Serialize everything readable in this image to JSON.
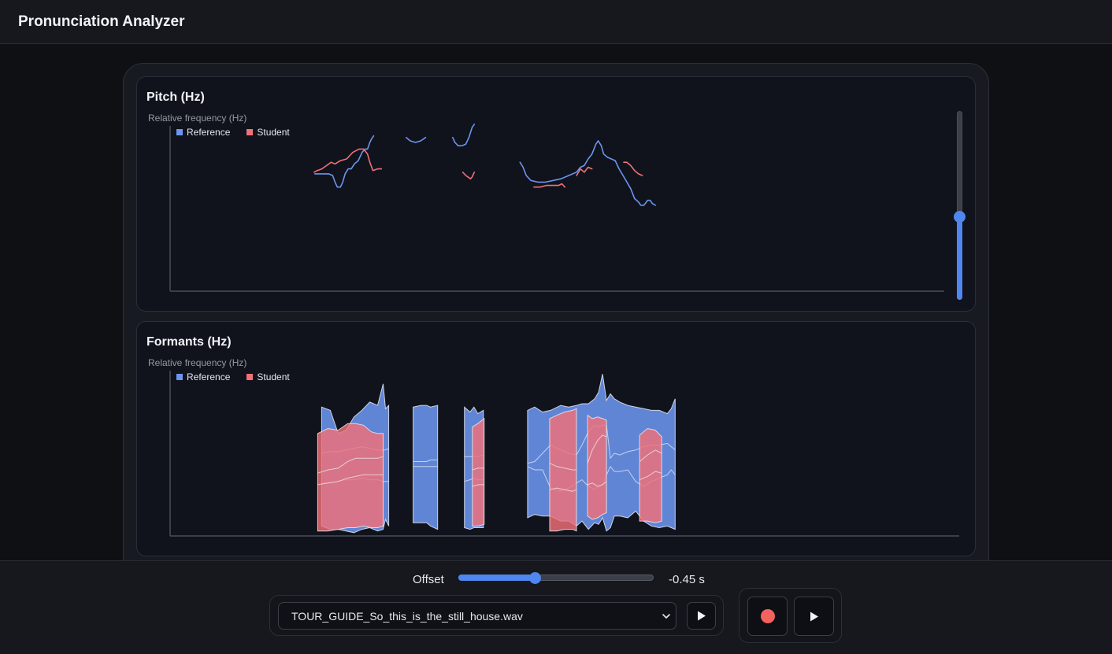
{
  "app": {
    "title": "Pronunciation Analyzer"
  },
  "colors": {
    "reference": "#6c95ef",
    "student": "#f17078",
    "accent": "#4f86f0",
    "record": "#f2625f"
  },
  "legend": {
    "reference": "Reference",
    "student": "Student"
  },
  "pitch_panel": {
    "title": "Pitch (Hz)",
    "y_axis_label": "Relative frequency (Hz)",
    "zoom_level": 0.44
  },
  "formants_panel": {
    "title": "Formants (Hz)",
    "y_axis_label": "Relative frequency (Hz)"
  },
  "offset": {
    "label": "Offset",
    "value_text": "-0.45 s",
    "fraction": 0.39
  },
  "audio_file": {
    "selected": "TOUR_GUIDE_So_this_is_the_still_house.wav"
  },
  "icons": {
    "file_play": "play-icon",
    "record": "record-icon",
    "record_play": "play-icon",
    "dropdown": "chevron-down-icon"
  },
  "chart_data": [
    {
      "type": "line",
      "title": "Pitch (Hz)",
      "ylabel": "Relative frequency (Hz)",
      "xlabel": "",
      "x_range": [
        0,
        1
      ],
      "ylim": [
        0,
        100
      ],
      "grid": false,
      "legend": "top-left",
      "series": [
        {
          "name": "Reference",
          "segments": [
            [
              [
                0.187,
                71
              ],
              [
                0.195,
                71
              ],
              [
                0.205,
                71
              ],
              [
                0.21,
                70
              ],
              [
                0.213,
                66
              ],
              [
                0.216,
                63
              ],
              [
                0.22,
                63
              ],
              [
                0.223,
                66
              ],
              [
                0.226,
                71
              ],
              [
                0.23,
                74
              ],
              [
                0.234,
                74
              ],
              [
                0.238,
                77
              ],
              [
                0.243,
                79
              ],
              [
                0.248,
                84
              ],
              [
                0.252,
                86
              ],
              [
                0.255,
                86
              ],
              [
                0.258,
                90
              ],
              [
                0.26,
                92
              ],
              [
                0.263,
                94
              ]
            ],
            [
              [
                0.305,
                93
              ],
              [
                0.31,
                91
              ],
              [
                0.317,
                90
              ],
              [
                0.324,
                91
              ],
              [
                0.33,
                93
              ]
            ],
            [
              [
                0.365,
                93
              ],
              [
                0.368,
                90
              ],
              [
                0.372,
                88
              ],
              [
                0.377,
                88
              ],
              [
                0.382,
                89
              ],
              [
                0.386,
                93
              ],
              [
                0.39,
                99
              ],
              [
                0.393,
                101
              ]
            ],
            [
              [
                0.452,
                78
              ],
              [
                0.456,
                75
              ],
              [
                0.46,
                70
              ],
              [
                0.466,
                67
              ],
              [
                0.475,
                66
              ],
              [
                0.485,
                66
              ],
              [
                0.495,
                67
              ],
              [
                0.505,
                68
              ],
              [
                0.515,
                70
              ],
              [
                0.525,
                72
              ],
              [
                0.53,
                75
              ],
              [
                0.535,
                76
              ],
              [
                0.54,
                80
              ],
              [
                0.545,
                83
              ],
              [
                0.55,
                89
              ],
              [
                0.553,
                91
              ],
              [
                0.557,
                88
              ],
              [
                0.56,
                83
              ],
              [
                0.565,
                81
              ],
              [
                0.57,
                80
              ],
              [
                0.575,
                79
              ],
              [
                0.58,
                74
              ],
              [
                0.585,
                70
              ],
              [
                0.59,
                66
              ],
              [
                0.595,
                62
              ],
              [
                0.6,
                56
              ],
              [
                0.605,
                54
              ],
              [
                0.608,
                52
              ],
              [
                0.612,
                52
              ],
              [
                0.617,
                55
              ],
              [
                0.62,
                55
              ],
              [
                0.623,
                53
              ],
              [
                0.627,
                52
              ]
            ]
          ]
        },
        {
          "name": "Student",
          "segments": [
            [
              [
                0.186,
                72
              ],
              [
                0.19,
                73
              ],
              [
                0.196,
                74
              ],
              [
                0.202,
                76
              ],
              [
                0.208,
                78
              ],
              [
                0.213,
                77
              ],
              [
                0.22,
                79
              ],
              [
                0.228,
                80
              ],
              [
                0.236,
                84
              ],
              [
                0.244,
                86
              ],
              [
                0.25,
                86
              ],
              [
                0.255,
                83
              ],
              [
                0.258,
                78
              ],
              [
                0.262,
                73
              ],
              [
                0.268,
                74
              ],
              [
                0.273,
                74
              ]
            ],
            [
              [
                0.378,
                72
              ],
              [
                0.382,
                70
              ],
              [
                0.388,
                68
              ],
              [
                0.39,
                69
              ],
              [
                0.393,
                72
              ]
            ],
            [
              [
                0.47,
                63
              ],
              [
                0.478,
                63
              ],
              [
                0.486,
                64
              ],
              [
                0.494,
                64
              ],
              [
                0.502,
                64
              ],
              [
                0.506,
                65
              ],
              [
                0.51,
                63
              ]
            ],
            [
              [
                0.525,
                70
              ],
              [
                0.53,
                74
              ],
              [
                0.535,
                72
              ],
              [
                0.54,
                75
              ],
              [
                0.545,
                74
              ]
            ],
            [
              [
                0.586,
                78
              ],
              [
                0.59,
                78
              ],
              [
                0.595,
                76
              ],
              [
                0.6,
                73
              ],
              [
                0.605,
                71
              ],
              [
                0.61,
                70
              ]
            ]
          ]
        }
      ]
    },
    {
      "type": "area",
      "title": "Formants (Hz)",
      "ylabel": "Relative frequency (Hz)",
      "xlabel": "",
      "x_range": [
        0,
        1
      ],
      "ylim": [
        0,
        100
      ],
      "grid": false,
      "legend": "top-left",
      "series": [
        {
          "name": "Reference",
          "bands": [
            {
              "x": [
                0.192,
                0.203,
                0.213,
                0.223,
                0.233,
                0.243,
                0.253,
                0.263,
                0.27,
                0.273,
                0.277
              ],
              "top": [
                78,
                76,
                62,
                64,
                72,
                76,
                81,
                79,
                92,
                77,
                79
              ],
              "bottom": [
                6,
                4,
                4,
                3,
                2,
                4,
                5,
                3,
                4,
                10,
                6
              ],
              "mid": [
                [
                  32,
                  32,
                  33,
                  34,
                  34,
                  35,
                  34,
                  34,
                  33,
                  33,
                  33
                ],
                [
                  50,
                  51,
                  51,
                  52,
                  53,
                  54,
                  53,
                  52,
                  52,
                  52,
                  53
                ]
              ]
            },
            {
              "x": [
                0.308,
                0.318,
                0.325,
                0.33,
                0.339
              ],
              "top": [
                78,
                79,
                79,
                78,
                79
              ],
              "bottom": [
                8,
                8,
                8,
                6,
                4
              ],
              "mid": [
                [
                  42,
                  42,
                  42,
                  42,
                  42
                ],
                [
                  45,
                  45,
                  45,
                  46,
                  46
                ]
              ]
            },
            {
              "x": [
                0.373,
                0.38,
                0.385,
                0.39,
                0.397
              ],
              "top": [
                78,
                75,
                78,
                74,
                76
              ],
              "bottom": [
                5,
                4,
                5,
                5,
                5
              ],
              "mid": [
                [
                  33,
                  34,
                  35,
                  34,
                  34
                ],
                [
                  48,
                  48,
                  48,
                  48,
                  49
                ]
              ]
            },
            {
              "x": [
                0.453,
                0.462,
                0.472,
                0.482,
                0.495,
                0.505,
                0.515,
                0.522,
                0.53,
                0.538,
                0.543,
                0.548,
                0.553,
                0.558,
                0.563,
                0.57,
                0.58,
                0.59,
                0.6,
                0.61,
                0.62,
                0.63,
                0.635,
                0.64
              ],
              "top": [
                76,
                78,
                75,
                76,
                79,
                78,
                79,
                80,
                80,
                83,
                87,
                98,
                82,
                86,
                83,
                81,
                79,
                78,
                77,
                76,
                76,
                74,
                77,
                83
              ],
              "bottom": [
                11,
                13,
                12,
                12,
                9,
                9,
                6,
                9,
                4,
                8,
                7,
                11,
                3,
                5,
                12,
                12,
                11,
                15,
                9,
                6,
                5,
                6,
                5,
                4
              ],
              "mid": [
                [
                  42,
                  40,
                  40,
                  29,
                  27,
                  29,
                  32,
                  34,
                  30,
                  28,
                  30,
                  31,
                  37,
                  42,
                  39,
                  39,
                  40,
                  33,
                  30,
                  33,
                  35,
                  37,
                  40,
                  37
                ],
                [
                  44,
                  45,
                  50,
                  55,
                  52,
                  50,
                  49,
                  55,
                  63,
                  67,
                  66,
                  67,
                  67,
                  47,
                  50,
                  49,
                  51,
                  52,
                  54,
                  55,
                  55,
                  56,
                  54,
                  52
                ]
              ]
            }
          ]
        },
        {
          "name": "Student",
          "bands": [
            {
              "x": [
                0.187,
                0.2,
                0.213,
                0.225,
                0.235,
                0.245,
                0.255,
                0.263,
                0.27
              ],
              "top": [
                62,
                65,
                64,
                68,
                68,
                67,
                63,
                62,
                62
              ],
              "bottom": [
                3,
                3,
                4,
                5,
                5,
                6,
                5,
                5,
                6
              ],
              "mid": [
                [
                  31,
                  32,
                  33,
                  35,
                  36,
                  37,
                  37,
                  37,
                  37
                ],
                [
                  38,
                  40,
                  41,
                  45,
                  47,
                  47,
                  47,
                  47,
                  48
                ]
              ]
            },
            {
              "x": [
                0.383,
                0.39,
                0.398
              ],
              "top": [
                66,
                68,
                71
              ],
              "bottom": [
                6,
                6,
                7
              ],
              "mid": [
                [
                  30,
                  31,
                  31
                ],
                [
                  40,
                  41,
                  41
                ]
              ]
            },
            {
              "x": [
                0.481,
                0.49,
                0.5,
                0.51,
                0.515
              ],
              "top": [
                71,
                73,
                75,
                76,
                77
              ],
              "bottom": [
                3,
                3,
                4,
                4,
                3
              ],
              "mid": [
                [
                  28,
                  29,
                  28,
                  27,
                  28
                ],
                [
                  44,
                  42,
                  41,
                  40,
                  40
                ]
              ]
            },
            {
              "x": [
                0.529,
                0.535,
                0.542,
                0.548,
                0.553
              ],
              "top": [
                73,
                71,
                72,
                71,
                70
              ],
              "bottom": [
                12,
                10,
                11,
                13,
                14
              ],
              "mid": [
                [
                  31,
                  32,
                  30,
                  31,
                  33
                ],
                [
                  44,
                  52,
                  58,
                  61,
                  60
                ]
              ]
            },
            {
              "x": [
                0.595,
                0.605,
                0.615,
                0.623
              ],
              "top": [
                61,
                65,
                64,
                60
              ],
              "bottom": [
                9,
                9,
                8,
                9
              ],
              "mid": [
                [
                  34,
                  36,
                  39,
                  38
                ],
                [
                  45,
                  49,
                  52,
                  50
                ]
              ]
            }
          ]
        }
      ]
    }
  ]
}
